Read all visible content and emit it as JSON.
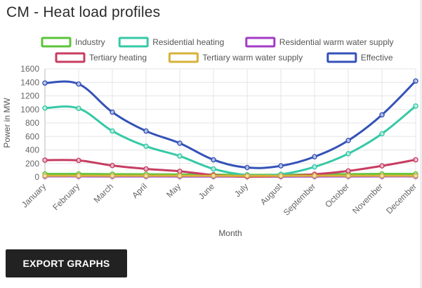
{
  "page": {
    "title": "CM - Heat load profiles",
    "export_label": "EXPORT GRAPHS"
  },
  "chart_data": {
    "type": "line",
    "xlabel": "Month",
    "ylabel": "Power in MW",
    "ylim": [
      0,
      1600
    ],
    "yticks": [
      0,
      200,
      400,
      600,
      800,
      1000,
      1200,
      1400,
      1600
    ],
    "grid": true,
    "legend_position": "top",
    "categories": [
      "January",
      "February",
      "March",
      "April",
      "May",
      "June",
      "July",
      "August",
      "September",
      "October",
      "November",
      "December"
    ],
    "series": [
      {
        "name": "Industry",
        "color": "#5cc33b",
        "values": [
          45,
          45,
          42,
          40,
          38,
          35,
          32,
          33,
          38,
          42,
          45,
          45
        ]
      },
      {
        "name": "Residential heating",
        "color": "#36c9a6",
        "values": [
          1020,
          1015,
          680,
          455,
          310,
          120,
          30,
          40,
          150,
          345,
          640,
          1050
        ]
      },
      {
        "name": "Residential warm water supply",
        "color": "#a23bc6",
        "values": [
          10,
          10,
          9,
          9,
          8,
          8,
          7,
          7,
          8,
          9,
          10,
          10
        ]
      },
      {
        "name": "Tertiary heating",
        "color": "#c73d62",
        "values": [
          250,
          245,
          170,
          120,
          85,
          30,
          5,
          15,
          40,
          90,
          165,
          255
        ]
      },
      {
        "name": "Tertiary warm water supply",
        "color": "#d6b23a",
        "values": [
          20,
          20,
          20,
          19,
          19,
          18,
          18,
          18,
          19,
          19,
          20,
          20
        ]
      },
      {
        "name": "Effective",
        "color": "#3452b8",
        "values": [
          1390,
          1375,
          960,
          680,
          500,
          255,
          140,
          165,
          300,
          540,
          920,
          1420
        ]
      }
    ]
  }
}
